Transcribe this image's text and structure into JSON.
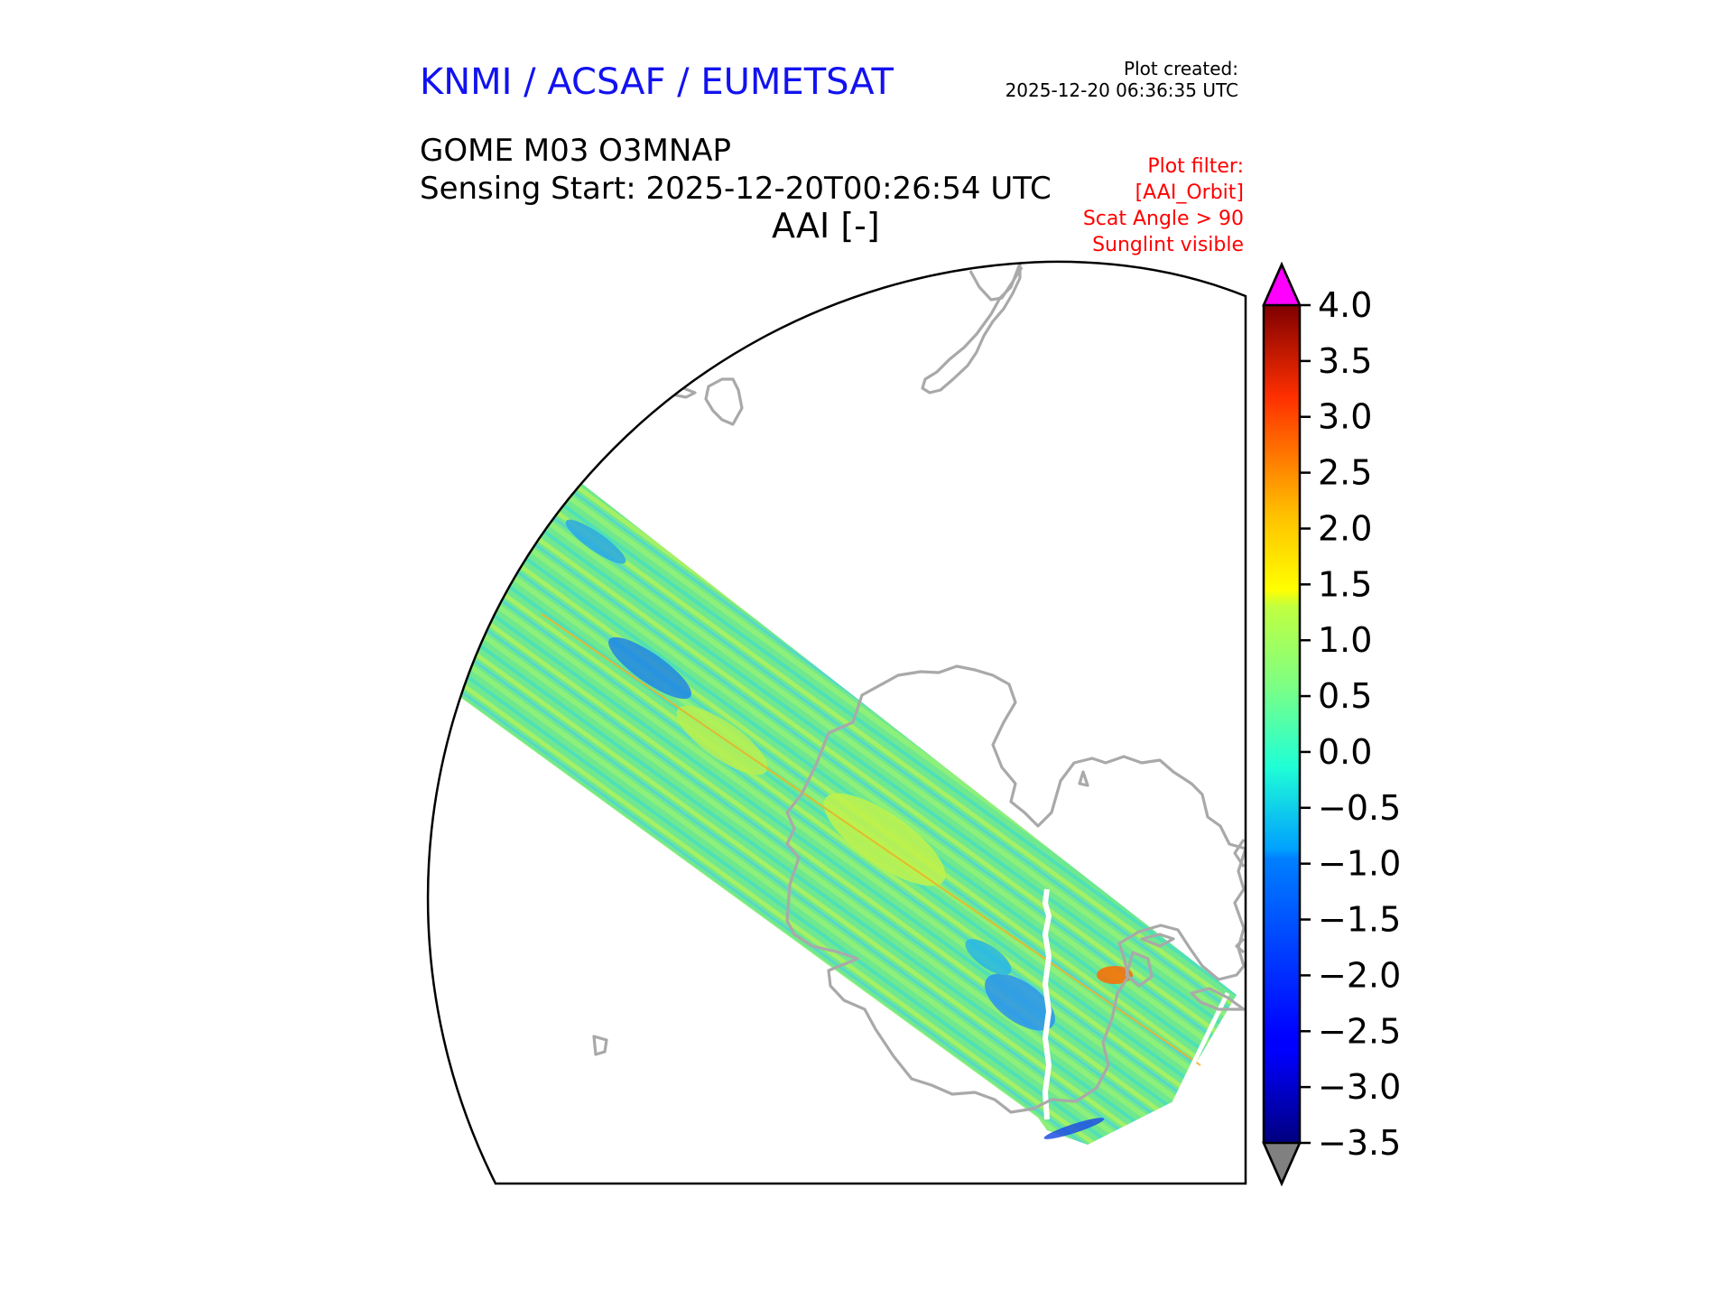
{
  "header": {
    "agency": "KNMI / ACSAF / EUMETSAT",
    "plot_created_label": "Plot created:",
    "plot_created_time": "2025-12-20 06:36:35 UTC",
    "product": "GOME M03 O3MNAP",
    "sensing_start": "Sensing Start: 2025-12-20T00:26:54 UTC",
    "variable": "AAI [-]"
  },
  "filter": {
    "lines": [
      "Plot filter:",
      "[AAI_Orbit]",
      "Scat Angle > 90",
      "Sunglint visible"
    ],
    "color": "#ff0000"
  },
  "colorbar": {
    "min": -3.5,
    "max": 4.0,
    "ticks": [
      "4.0",
      "3.5",
      "3.0",
      "2.5",
      "2.0",
      "1.5",
      "1.0",
      "0.5",
      "0.0",
      "−0.5",
      "−1.0",
      "−1.5",
      "−2.0",
      "−2.5",
      "−3.0",
      "−3.5"
    ],
    "over_color": "#ff00ff",
    "under_color": "#808080",
    "colormap": "jet"
  },
  "map": {
    "region": "South polar region (Antarctica, New Zealand)",
    "coastline_color": "#a9a9a9",
    "swath_typical_value_range": [
      -1.0,
      1.0
    ]
  }
}
